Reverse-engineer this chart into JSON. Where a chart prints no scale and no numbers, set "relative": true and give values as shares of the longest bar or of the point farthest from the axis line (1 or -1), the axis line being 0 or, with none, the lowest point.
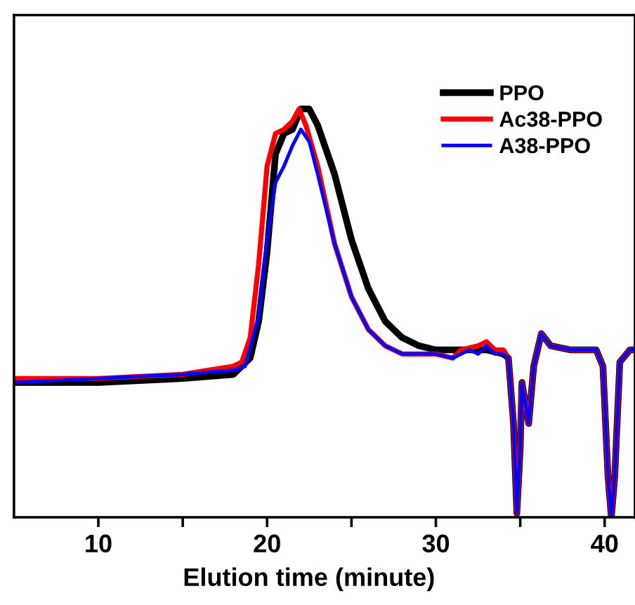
{
  "chart_data": {
    "type": "line",
    "xlabel": "Elution time (minute)",
    "relative": true,
    "xlim": [
      5,
      41.8
    ],
    "xticks": [
      10,
      {
        "value": 15,
        "label": null
      },
      20,
      {
        "value": 25,
        "label": null
      },
      30,
      {
        "value": 35,
        "label": null
      },
      40
    ],
    "tick_labels": "x",
    "legend": "top right",
    "marker": "none",
    "line_style": "solid",
    "grid": false,
    "series": [
      {
        "name": "PPO",
        "color": "#000000",
        "x": [
          5,
          10,
          15,
          18,
          19,
          19.5,
          20,
          20.5,
          21,
          21.5,
          22,
          22.5,
          23,
          24,
          25,
          26,
          27,
          28,
          29,
          30,
          31,
          32,
          33,
          34,
          34.3,
          34.6,
          34.8,
          35.0,
          35.1,
          35.5,
          35.8,
          36.25,
          36.8,
          38,
          39.5,
          39.9,
          40.2,
          40.4,
          40.6,
          40.9,
          41.5,
          41.8
        ],
        "values": [
          0.33,
          0.33,
          0.34,
          0.35,
          0.39,
          0.48,
          0.65,
          0.89,
          0.94,
          0.95,
          1.0,
          1.0,
          0.96,
          0.84,
          0.68,
          0.56,
          0.48,
          0.44,
          0.42,
          0.41,
          0.41,
          0.41,
          0.41,
          0.4,
          0.39,
          0.23,
          0.01,
          0.17,
          0.33,
          0.23,
          0.37,
          0.45,
          0.42,
          0.41,
          0.41,
          0.37,
          0.1,
          0.0,
          0.1,
          0.38,
          0.41,
          0.41
        ]
      },
      {
        "name": "Ac38-PPO",
        "color": "#ff0000",
        "x": [
          5,
          10,
          15,
          18,
          18.5,
          19,
          19.5,
          20,
          20.5,
          21,
          21.5,
          21.9,
          22.3,
          23,
          24,
          25,
          26,
          27,
          28,
          29,
          30,
          31,
          31.5,
          32.5,
          33,
          33.5,
          34,
          34.3,
          34.6,
          34.8,
          35.0,
          35.1,
          35.5,
          35.8,
          36.25,
          36.8,
          38,
          39.5,
          39.9,
          40.2,
          40.4,
          40.6,
          40.9,
          41.5,
          41.8
        ],
        "values": [
          0.34,
          0.34,
          0.35,
          0.37,
          0.38,
          0.44,
          0.62,
          0.86,
          0.94,
          0.95,
          0.97,
          1.0,
          0.96,
          0.86,
          0.67,
          0.54,
          0.46,
          0.42,
          0.4,
          0.4,
          0.4,
          0.39,
          0.41,
          0.42,
          0.43,
          0.41,
          0.41,
          0.39,
          0.23,
          0.01,
          0.17,
          0.33,
          0.23,
          0.37,
          0.45,
          0.42,
          0.41,
          0.41,
          0.37,
          0.1,
          0.0,
          0.1,
          0.38,
          0.41,
          0.41
        ]
      },
      {
        "name": "A38-PPO",
        "color": "#0000ff",
        "x": [
          5,
          10,
          15,
          18,
          18.7,
          19.5,
          20,
          20.5,
          21,
          21.5,
          22,
          22.5,
          23,
          24,
          25,
          26,
          27,
          28,
          29,
          30,
          31,
          31.5,
          32,
          32.5,
          33,
          33.5,
          34,
          34.3,
          34.6,
          34.8,
          35.0,
          35.1,
          35.5,
          35.8,
          36.25,
          36.8,
          38,
          39.5,
          39.9,
          40.2,
          40.4,
          40.6,
          40.9,
          41.5,
          41.8
        ],
        "values": [
          0.33,
          0.34,
          0.35,
          0.36,
          0.37,
          0.49,
          0.68,
          0.82,
          0.86,
          0.91,
          0.95,
          0.92,
          0.84,
          0.67,
          0.54,
          0.46,
          0.42,
          0.4,
          0.4,
          0.4,
          0.39,
          0.4,
          0.41,
          0.4,
          0.42,
          0.4,
          0.4,
          0.39,
          0.23,
          0.01,
          0.17,
          0.33,
          0.23,
          0.37,
          0.45,
          0.42,
          0.41,
          0.41,
          0.37,
          0.1,
          0.0,
          0.1,
          0.38,
          0.41,
          0.41
        ]
      }
    ]
  }
}
